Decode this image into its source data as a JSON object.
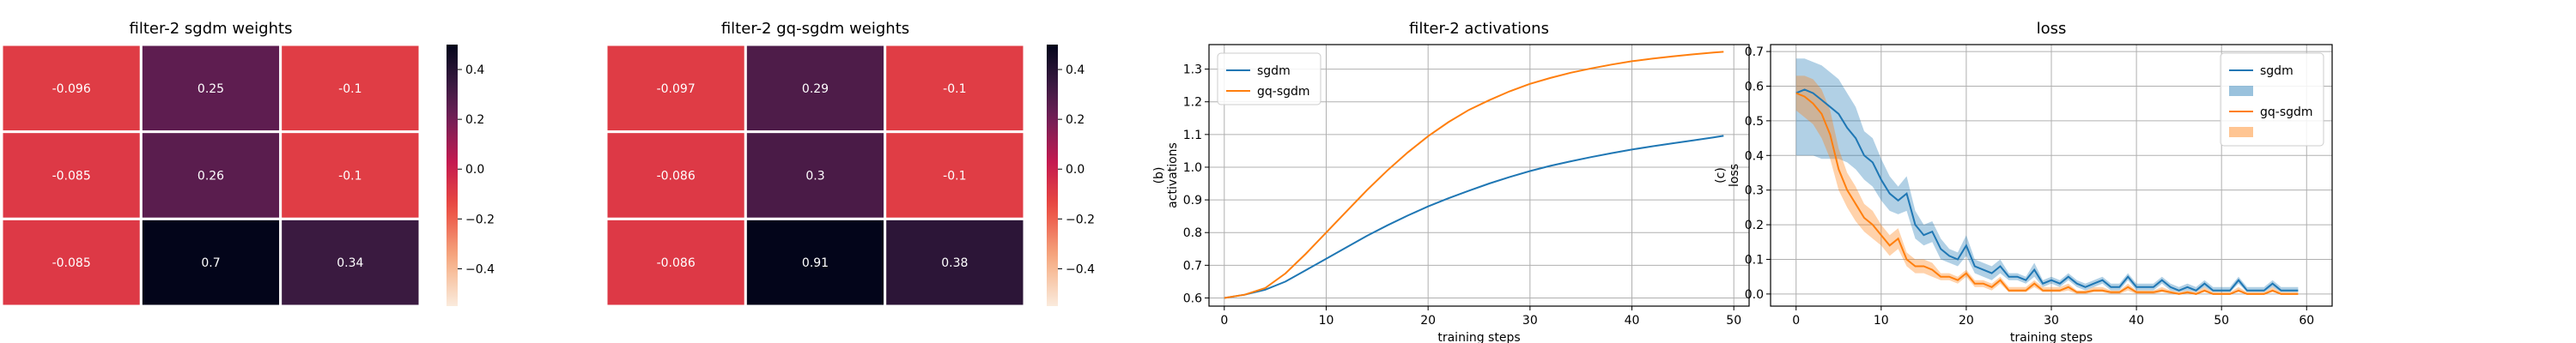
{
  "chart_data": [
    {
      "type": "heatmap",
      "title": "filter-2 sgdm weights",
      "rows": 3,
      "cols": 3,
      "values": [
        [
          -0.096,
          0.25,
          -0.1
        ],
        [
          -0.085,
          0.26,
          -0.1
        ],
        [
          -0.085,
          0.7,
          0.34
        ]
      ],
      "labels": [
        [
          "-0.096",
          "0.25",
          "-0.1"
        ],
        [
          "-0.085",
          "0.26",
          "-0.1"
        ],
        [
          "-0.085",
          "0.7",
          "0.34"
        ]
      ],
      "colorbar": {
        "vmin": -0.55,
        "vmax": 0.5,
        "ticks": [
          "0.4",
          "0.2",
          "0.0",
          "−0.2",
          "−0.4"
        ],
        "tick_values": [
          0.4,
          0.2,
          0.0,
          -0.2,
          -0.4
        ]
      }
    },
    {
      "type": "heatmap",
      "title": "filter-2 gq-sgdm weights",
      "rows": 3,
      "cols": 3,
      "values": [
        [
          -0.097,
          0.29,
          -0.1
        ],
        [
          -0.086,
          0.3,
          -0.1
        ],
        [
          -0.086,
          0.91,
          0.38
        ]
      ],
      "labels": [
        [
          "-0.097",
          "0.29",
          "-0.1"
        ],
        [
          "-0.086",
          "0.3",
          "-0.1"
        ],
        [
          "-0.086",
          "0.91",
          "0.38"
        ]
      ],
      "colorbar": {
        "vmin": -0.55,
        "vmax": 0.5,
        "ticks": [
          "0.4",
          "0.2",
          "0.0",
          "−0.2",
          "−0.4"
        ],
        "tick_values": [
          0.4,
          0.2,
          0.0,
          -0.2,
          -0.4
        ]
      }
    },
    {
      "type": "line",
      "title": "filter-2 activations",
      "xlabel": "training steps",
      "ylabel": "(b)\nactivations",
      "xlim": [
        -1.5,
        51.5
      ],
      "ylim": [
        0.575,
        1.375
      ],
      "xticks": [
        0,
        10,
        20,
        30,
        40,
        50
      ],
      "yticks": [
        0.6,
        0.7,
        0.8,
        0.9,
        1.0,
        1.1,
        1.2,
        1.3
      ],
      "ytick_labels": [
        "0.6",
        "0.7",
        "0.8",
        "0.9",
        "1.0",
        "1.1",
        "1.2",
        "1.3"
      ],
      "grid": true,
      "legend": "top-left",
      "series": [
        {
          "name": "sgdm",
          "color": "#1f77b4",
          "x": [
            0,
            2,
            4,
            6,
            8,
            10,
            12,
            14,
            16,
            18,
            20,
            22,
            24,
            26,
            28,
            30,
            32,
            34,
            36,
            38,
            40,
            42,
            44,
            46,
            48,
            49
          ],
          "y": [
            0.6,
            0.61,
            0.625,
            0.65,
            0.685,
            0.72,
            0.755,
            0.79,
            0.822,
            0.852,
            0.88,
            0.905,
            0.928,
            0.95,
            0.97,
            0.988,
            1.004,
            1.018,
            1.031,
            1.043,
            1.054,
            1.064,
            1.073,
            1.082,
            1.091,
            1.096
          ]
        },
        {
          "name": "gq-sgdm",
          "color": "#ff7f0e",
          "x": [
            0,
            2,
            4,
            6,
            8,
            10,
            12,
            14,
            16,
            18,
            20,
            22,
            24,
            26,
            28,
            30,
            32,
            34,
            36,
            38,
            40,
            42,
            44,
            46,
            48,
            49
          ],
          "y": [
            0.6,
            0.61,
            0.63,
            0.675,
            0.735,
            0.8,
            0.865,
            0.93,
            0.99,
            1.045,
            1.095,
            1.138,
            1.175,
            1.205,
            1.232,
            1.255,
            1.273,
            1.289,
            1.302,
            1.314,
            1.324,
            1.332,
            1.339,
            1.345,
            1.351,
            1.353
          ]
        }
      ]
    },
    {
      "type": "line",
      "title": "loss",
      "xlabel": "training steps",
      "ylabel": "(c)\nloss",
      "xlim": [
        -3,
        63
      ],
      "ylim": [
        -0.035,
        0.72
      ],
      "xticks": [
        0,
        10,
        20,
        30,
        40,
        50,
        60
      ],
      "yticks": [
        0.0,
        0.1,
        0.2,
        0.3,
        0.4,
        0.5,
        0.6,
        0.7
      ],
      "ytick_labels": [
        "0.0",
        "0.1",
        "0.2",
        "0.3",
        "0.4",
        "0.5",
        "0.6",
        "0.7"
      ],
      "grid": true,
      "legend": "top-right",
      "series": [
        {
          "name": "sgdm",
          "color": "#1f77b4",
          "x": [
            0,
            1,
            2,
            3,
            4,
            5,
            6,
            7,
            8,
            9,
            10,
            11,
            12,
            13,
            14,
            15,
            16,
            17,
            18,
            19,
            20,
            21,
            22,
            23,
            24,
            25,
            26,
            27,
            28,
            29,
            30,
            31,
            32,
            33,
            34,
            35,
            36,
            37,
            38,
            39,
            40,
            41,
            42,
            43,
            44,
            45,
            46,
            47,
            48,
            49,
            50,
            51,
            52,
            53,
            54,
            55,
            56,
            57,
            58,
            59
          ],
          "y": [
            0.58,
            0.59,
            0.58,
            0.56,
            0.54,
            0.52,
            0.48,
            0.45,
            0.4,
            0.38,
            0.33,
            0.29,
            0.27,
            0.29,
            0.2,
            0.17,
            0.18,
            0.13,
            0.11,
            0.1,
            0.14,
            0.08,
            0.07,
            0.06,
            0.08,
            0.05,
            0.05,
            0.04,
            0.07,
            0.03,
            0.04,
            0.03,
            0.05,
            0.03,
            0.02,
            0.03,
            0.04,
            0.02,
            0.02,
            0.05,
            0.02,
            0.02,
            0.02,
            0.04,
            0.02,
            0.01,
            0.02,
            0.01,
            0.03,
            0.01,
            0.01,
            0.01,
            0.04,
            0.01,
            0.01,
            0.01,
            0.03,
            0.01,
            0.01,
            0.01
          ],
          "band_low": [
            0.4,
            0.4,
            0.4,
            0.39,
            0.39,
            0.39,
            0.38,
            0.36,
            0.33,
            0.31,
            0.27,
            0.24,
            0.23,
            0.24,
            0.16,
            0.14,
            0.15,
            0.1,
            0.09,
            0.08,
            0.11,
            0.06,
            0.05,
            0.04,
            0.06,
            0.04,
            0.04,
            0.03,
            0.05,
            0.02,
            0.03,
            0.02,
            0.04,
            0.02,
            0.01,
            0.02,
            0.03,
            0.01,
            0.01,
            0.04,
            0.01,
            0.01,
            0.01,
            0.03,
            0.01,
            0.005,
            0.01,
            0.005,
            0.02,
            0.005,
            0.005,
            0.005,
            0.03,
            0.005,
            0.005,
            0.005,
            0.02,
            0.005,
            0.005,
            0.005
          ],
          "band_high": [
            0.68,
            0.68,
            0.67,
            0.66,
            0.64,
            0.62,
            0.58,
            0.54,
            0.47,
            0.45,
            0.39,
            0.34,
            0.31,
            0.34,
            0.24,
            0.2,
            0.21,
            0.16,
            0.13,
            0.12,
            0.17,
            0.1,
            0.09,
            0.08,
            0.1,
            0.06,
            0.06,
            0.05,
            0.09,
            0.04,
            0.05,
            0.04,
            0.06,
            0.04,
            0.03,
            0.04,
            0.05,
            0.03,
            0.03,
            0.06,
            0.03,
            0.03,
            0.03,
            0.05,
            0.03,
            0.02,
            0.03,
            0.02,
            0.04,
            0.02,
            0.02,
            0.02,
            0.05,
            0.02,
            0.02,
            0.02,
            0.04,
            0.02,
            0.02,
            0.02
          ]
        },
        {
          "name": "gq-sgdm",
          "color": "#ff7f0e",
          "x": [
            0,
            1,
            2,
            3,
            4,
            5,
            6,
            7,
            8,
            9,
            10,
            11,
            12,
            13,
            14,
            15,
            16,
            17,
            18,
            19,
            20,
            21,
            22,
            23,
            24,
            25,
            26,
            27,
            28,
            29,
            30,
            31,
            32,
            33,
            34,
            35,
            36,
            37,
            38,
            39,
            40,
            41,
            42,
            43,
            44,
            45,
            46,
            47,
            48,
            49,
            50,
            51,
            52,
            53,
            54,
            55,
            56,
            57,
            58,
            59
          ],
          "y": [
            0.58,
            0.57,
            0.55,
            0.52,
            0.46,
            0.36,
            0.3,
            0.26,
            0.22,
            0.2,
            0.17,
            0.14,
            0.16,
            0.1,
            0.08,
            0.08,
            0.07,
            0.05,
            0.05,
            0.04,
            0.06,
            0.03,
            0.03,
            0.02,
            0.04,
            0.01,
            0.01,
            0.01,
            0.03,
            0.01,
            0.01,
            0.01,
            0.02,
            0.005,
            0.005,
            0.01,
            0.01,
            0.005,
            0.005,
            0.02,
            0.005,
            0.005,
            0.005,
            0.01,
            0.005,
            0.0,
            0.005,
            0.0,
            0.01,
            0.0,
            0.0,
            0.0,
            0.01,
            0.0,
            0.0,
            0.0,
            0.01,
            0.0,
            0.0,
            0.0
          ],
          "band_low": [
            0.53,
            0.51,
            0.49,
            0.45,
            0.39,
            0.3,
            0.25,
            0.21,
            0.18,
            0.16,
            0.14,
            0.11,
            0.13,
            0.08,
            0.06,
            0.06,
            0.05,
            0.04,
            0.04,
            0.03,
            0.05,
            0.02,
            0.02,
            0.01,
            0.03,
            0.005,
            0.005,
            0.005,
            0.02,
            0.005,
            0.005,
            0.005,
            0.01,
            0.0,
            0.0,
            0.005,
            0.005,
            0.0,
            0.0,
            0.01,
            0.0,
            0.0,
            0.0,
            0.005,
            0.0,
            0.0,
            0.0,
            0.0,
            0.005,
            0.0,
            0.0,
            0.0,
            0.005,
            0.0,
            0.0,
            0.0,
            0.005,
            0.0,
            0.0,
            0.0
          ],
          "band_high": [
            0.63,
            0.63,
            0.62,
            0.59,
            0.53,
            0.42,
            0.35,
            0.31,
            0.26,
            0.24,
            0.2,
            0.17,
            0.19,
            0.12,
            0.1,
            0.1,
            0.09,
            0.06,
            0.06,
            0.05,
            0.07,
            0.04,
            0.04,
            0.03,
            0.05,
            0.02,
            0.02,
            0.02,
            0.04,
            0.02,
            0.02,
            0.02,
            0.03,
            0.01,
            0.01,
            0.02,
            0.02,
            0.01,
            0.01,
            0.03,
            0.01,
            0.01,
            0.01,
            0.02,
            0.01,
            0.005,
            0.01,
            0.005,
            0.02,
            0.005,
            0.005,
            0.005,
            0.02,
            0.005,
            0.005,
            0.005,
            0.02,
            0.005,
            0.005,
            0.005
          ]
        }
      ]
    }
  ]
}
